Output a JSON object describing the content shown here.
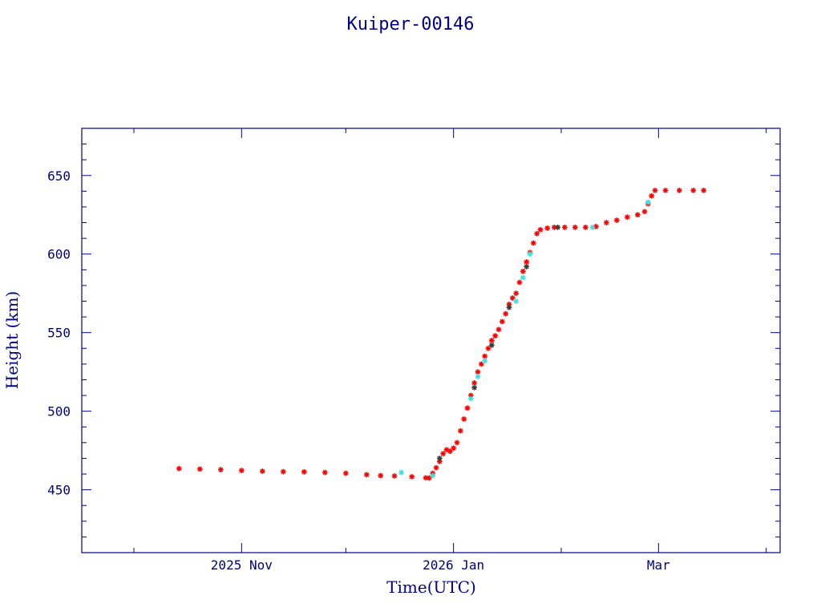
{
  "chart_data": {
    "type": "scatter",
    "title": "Kuiper-00146",
    "xlabel": "Time(UTC)",
    "ylabel": "Height (km)",
    "x_axis": {
      "type": "date",
      "range": [
        "2025-09-16",
        "2026-04-05"
      ],
      "major_ticks": [
        {
          "date": "2025-11-01",
          "label": "2025 Nov"
        },
        {
          "date": "2026-01-01",
          "label": "2026 Jan"
        },
        {
          "date": "2026-03-01",
          "label": "Mar"
        }
      ],
      "minor_ticks": [
        "2025-10-01",
        "2025-12-01",
        "2026-02-01",
        "2026-04-01"
      ]
    },
    "y_axis": {
      "range": [
        410,
        680
      ],
      "major_ticks": [
        450,
        500,
        550,
        600,
        650
      ],
      "minor_step": 10
    },
    "grid": false,
    "colors": {
      "frame": "#00008b",
      "primary_marker": "#ff0000",
      "secondary_marker": "#40e0e0",
      "dark_marker": "#3a3a3a"
    },
    "series": [
      {
        "marker": "asterisk",
        "color": "#ff0000",
        "points": [
          [
            "2025-10-14",
            463.5
          ],
          [
            "2025-10-20",
            463.2
          ],
          [
            "2025-10-26",
            462.8
          ],
          [
            "2025-11-01",
            462.3
          ],
          [
            "2025-11-07",
            461.8
          ],
          [
            "2025-11-13",
            461.5
          ],
          [
            "2025-11-19",
            461.4
          ],
          [
            "2025-11-25",
            461.0
          ],
          [
            "2025-12-01",
            460.5
          ],
          [
            "2025-12-07",
            459.6
          ],
          [
            "2025-12-11",
            459.0
          ],
          [
            "2025-12-15",
            458.8
          ],
          [
            "2025-12-20",
            458.3
          ],
          [
            "2025-12-24",
            457.6
          ],
          [
            "2025-12-25",
            457.5
          ],
          [
            "2025-12-26",
            460.5
          ],
          [
            "2025-12-27",
            464.0
          ],
          [
            "2025-12-28",
            468.0
          ],
          [
            "2025-12-29",
            473.0
          ],
          [
            "2025-12-30",
            475.5
          ],
          [
            "2025-12-31",
            474.5
          ],
          [
            "2026-01-01",
            476.5
          ],
          [
            "2026-01-02",
            480.0
          ],
          [
            "2026-01-03",
            487.5
          ],
          [
            "2026-01-04",
            495.0
          ],
          [
            "2026-01-05",
            502.0
          ],
          [
            "2026-01-06",
            510.0
          ],
          [
            "2026-01-07",
            518.0
          ],
          [
            "2026-01-08",
            525.0
          ],
          [
            "2026-01-09",
            530.0
          ],
          [
            "2026-01-10",
            535.0
          ],
          [
            "2026-01-11",
            540.0
          ],
          [
            "2026-01-12",
            545.0
          ],
          [
            "2026-01-13",
            548.0
          ],
          [
            "2026-01-14",
            552.0
          ],
          [
            "2026-01-15",
            557.0
          ],
          [
            "2026-01-16",
            562.0
          ],
          [
            "2026-01-17",
            568.0
          ],
          [
            "2026-01-18",
            572.0
          ],
          [
            "2026-01-19",
            575.0
          ],
          [
            "2026-01-20",
            582.0
          ],
          [
            "2026-01-21",
            589.0
          ],
          [
            "2026-01-22",
            595.0
          ],
          [
            "2026-01-23",
            601.0
          ],
          [
            "2026-01-24",
            607.0
          ],
          [
            "2026-01-25",
            613.0
          ],
          [
            "2026-01-26",
            615.5
          ],
          [
            "2026-01-28",
            616.5
          ],
          [
            "2026-01-30",
            617.0
          ],
          [
            "2026-02-02",
            617.0
          ],
          [
            "2026-02-05",
            617.0
          ],
          [
            "2026-02-08",
            617.0
          ],
          [
            "2026-02-11",
            617.5
          ],
          [
            "2026-02-14",
            620.0
          ],
          [
            "2026-02-17",
            621.5
          ],
          [
            "2026-02-20",
            623.5
          ],
          [
            "2026-02-23",
            625.0
          ],
          [
            "2026-02-25",
            627.0
          ],
          [
            "2026-02-26",
            632.0
          ],
          [
            "2026-02-27",
            637.0
          ],
          [
            "2026-02-28",
            640.5
          ],
          [
            "2026-03-03",
            640.5
          ],
          [
            "2026-03-07",
            640.5
          ],
          [
            "2026-03-11",
            640.5
          ],
          [
            "2026-03-14",
            640.5
          ]
        ]
      },
      {
        "marker": "asterisk",
        "color": "#40e0e0",
        "points": [
          [
            "2025-12-17",
            461.0
          ],
          [
            "2025-12-26",
            459.0
          ],
          [
            "2026-01-06",
            508.0
          ],
          [
            "2026-01-08",
            522.0
          ],
          [
            "2026-01-10",
            532.0
          ],
          [
            "2026-01-19",
            570.0
          ],
          [
            "2026-01-21",
            585.0
          ],
          [
            "2026-01-23",
            600.0
          ],
          [
            "2026-02-10",
            617.0
          ],
          [
            "2026-02-26",
            633.0
          ]
        ]
      },
      {
        "marker": "asterisk",
        "color": "#3a3a3a",
        "points": [
          [
            "2025-12-28",
            470.0
          ],
          [
            "2026-01-07",
            515.0
          ],
          [
            "2026-01-12",
            542.0
          ],
          [
            "2026-01-17",
            566.0
          ],
          [
            "2026-01-22",
            592.0
          ],
          [
            "2026-01-31",
            617.0
          ]
        ]
      }
    ]
  }
}
